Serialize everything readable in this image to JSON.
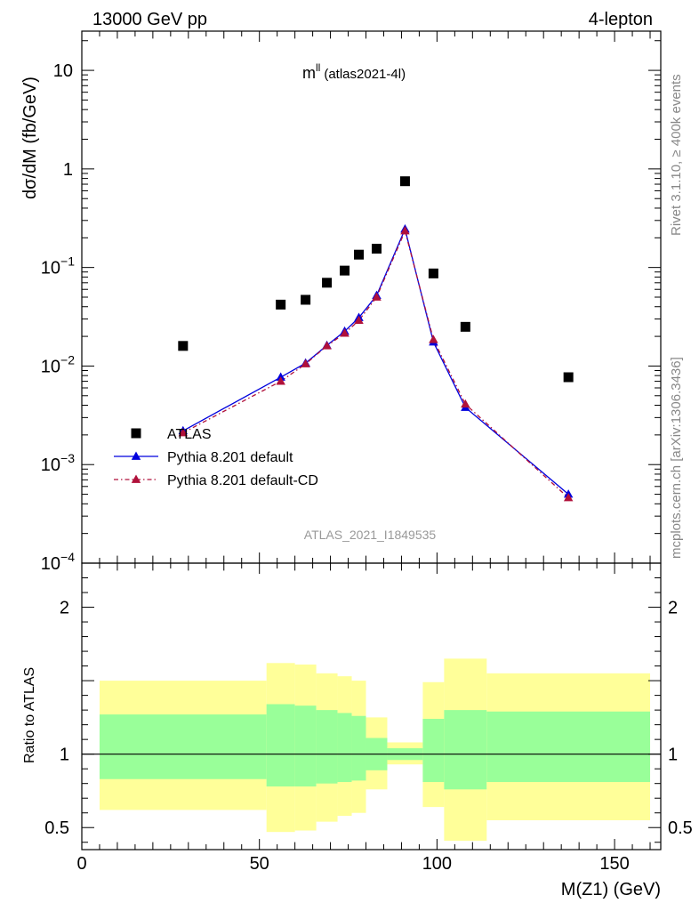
{
  "header": {
    "left": "13000 GeV pp",
    "right": "4-lepton"
  },
  "side_labels": {
    "rivet": "Rivet 3.1.10, ≥ 400k events",
    "mcplots": "mcplots.cern.ch [arXiv:1306.3436]"
  },
  "chart_data": [
    {
      "type": "scatter",
      "panel": "main",
      "title": "m",
      "title_superscript": "ll",
      "title_suffix": "(atlas2021-4l)",
      "watermark": "ATLAS_2021_I1849535",
      "ylabel": "dσ/dM (fb/GeV)",
      "xlim": [
        0,
        163
      ],
      "ylim": [
        0.0001,
        25
      ],
      "yscale": "log",
      "yticks": [
        {
          "value": 0.0001,
          "label": "10",
          "exp": "−4"
        },
        {
          "value": 0.001,
          "label": "10",
          "exp": "−3"
        },
        {
          "value": 0.01,
          "label": "10",
          "exp": "−2"
        },
        {
          "value": 0.1,
          "label": "10",
          "exp": "−1"
        },
        {
          "value": 1,
          "label": "1",
          "exp": ""
        },
        {
          "value": 10,
          "label": "10",
          "exp": ""
        }
      ],
      "legend_position": "bottom-left",
      "series": [
        {
          "name": "ATLAS",
          "style": "square",
          "color": "#000000",
          "x": [
            28.5,
            56,
            63,
            69,
            74,
            78,
            83,
            91,
            99,
            108,
            137
          ],
          "y": [
            0.016,
            0.042,
            0.047,
            0.07,
            0.093,
            0.135,
            0.155,
            0.75,
            0.087,
            0.025,
            0.0077
          ]
        },
        {
          "name": "Pythia 8.201 default",
          "style": "line-triangle",
          "color": "#0000dd",
          "x": [
            28.5,
            56,
            63,
            69,
            74,
            78,
            83,
            91,
            99,
            108,
            137
          ],
          "y": [
            0.0022,
            0.0077,
            0.0107,
            0.0162,
            0.0225,
            0.031,
            0.052,
            0.245,
            0.0175,
            0.0038,
            0.0005
          ]
        },
        {
          "name": "Pythia 8.201 default-CD",
          "style": "dashdot-triangle",
          "color": "#b0103a",
          "x": [
            28.5,
            56,
            63,
            69,
            74,
            78,
            83,
            91,
            99,
            108,
            137
          ],
          "y": [
            0.0021,
            0.007,
            0.0105,
            0.016,
            0.0215,
            0.029,
            0.05,
            0.235,
            0.0185,
            0.0041,
            0.00046
          ]
        }
      ]
    },
    {
      "type": "area",
      "panel": "ratio",
      "xlabel": "M(Z1) (GeV)",
      "ylabel": "Ratio to ATLAS",
      "xlim": [
        0,
        163
      ],
      "ylim": [
        0.35,
        2.3
      ],
      "xticks": [
        0,
        50,
        100,
        150
      ],
      "yticks": [
        0.5,
        1,
        2
      ],
      "reference_line": 1,
      "band_colors": {
        "outer": "#ffff99",
        "inner": "#99ff99"
      },
      "bins": [
        {
          "lo": 5,
          "hi": 52,
          "outer": [
            0.62,
            1.5
          ],
          "inner": [
            0.83,
            1.27
          ]
        },
        {
          "lo": 52,
          "hi": 60,
          "outer": [
            0.47,
            1.62
          ],
          "inner": [
            0.78,
            1.34
          ]
        },
        {
          "lo": 60,
          "hi": 66,
          "outer": [
            0.48,
            1.61
          ],
          "inner": [
            0.78,
            1.33
          ]
        },
        {
          "lo": 66,
          "hi": 72,
          "outer": [
            0.54,
            1.55
          ],
          "inner": [
            0.8,
            1.3
          ]
        },
        {
          "lo": 72,
          "hi": 76,
          "outer": [
            0.58,
            1.53
          ],
          "inner": [
            0.81,
            1.28
          ]
        },
        {
          "lo": 76,
          "hi": 80,
          "outer": [
            0.6,
            1.5
          ],
          "inner": [
            0.82,
            1.26
          ]
        },
        {
          "lo": 80,
          "hi": 86,
          "outer": [
            0.76,
            1.25
          ],
          "inner": [
            0.89,
            1.11
          ]
        },
        {
          "lo": 86,
          "hi": 96,
          "outer": [
            0.93,
            1.08
          ],
          "inner": [
            0.96,
            1.04
          ]
        },
        {
          "lo": 96,
          "hi": 102,
          "outer": [
            0.64,
            1.49
          ],
          "inner": [
            0.81,
            1.24
          ]
        },
        {
          "lo": 102,
          "hi": 114,
          "outer": [
            0.41,
            1.65
          ],
          "inner": [
            0.76,
            1.3
          ]
        },
        {
          "lo": 114,
          "hi": 160,
          "outer": [
            0.55,
            1.55
          ],
          "inner": [
            0.81,
            1.29
          ]
        }
      ]
    }
  ]
}
